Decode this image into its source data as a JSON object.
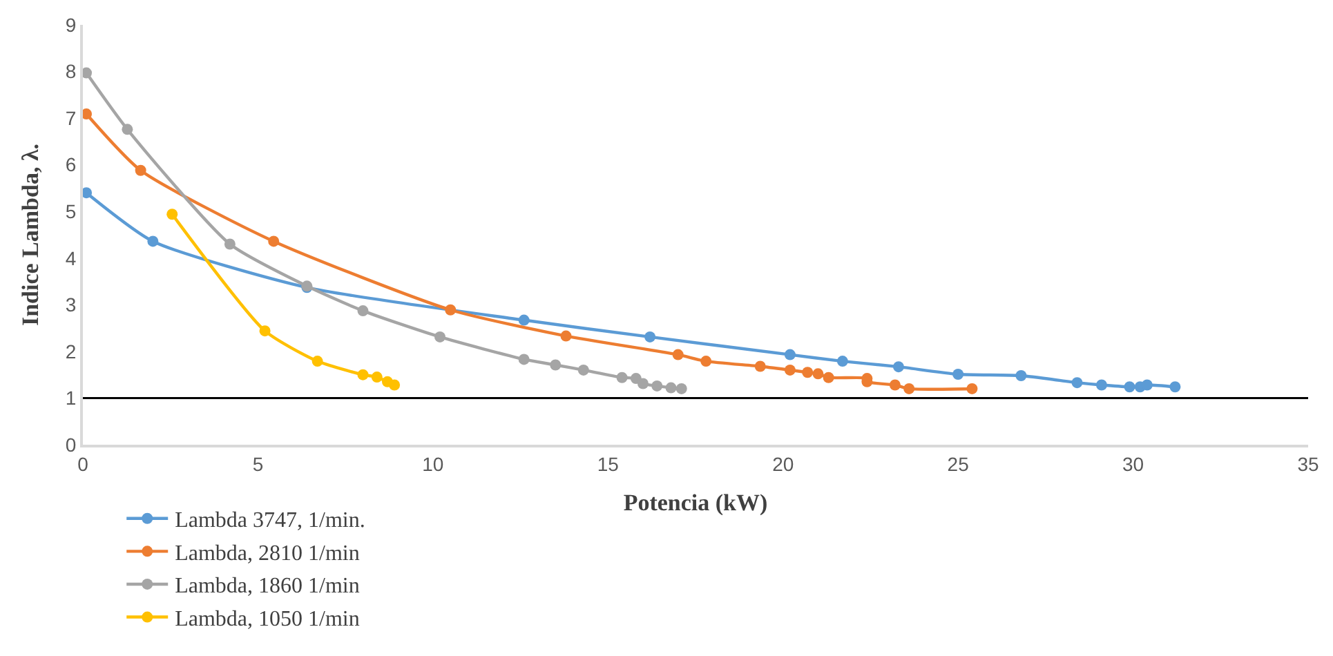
{
  "chart_data": {
    "type": "line",
    "xlabel": "Potencia (kW)",
    "ylabel": "Indice Lambda, λ.",
    "xlim": [
      0,
      35
    ],
    "xticks": [
      0,
      5,
      10,
      15,
      20,
      25,
      30,
      35
    ],
    "ylim": [
      0,
      9
    ],
    "yticks": [
      0,
      1,
      2,
      3,
      4,
      5,
      6,
      7,
      8,
      9
    ],
    "legend": "bottom",
    "marker": "circle",
    "line_style": "solid",
    "ref_lines": [
      {
        "axis": "y",
        "value": 1,
        "color": "#000000"
      }
    ],
    "series": [
      {
        "name": "Lambda 3747, 1/min.",
        "color": "#5b9bd5",
        "x": [
          0.1,
          2.0,
          6.4,
          12.6,
          16.2,
          20.2,
          21.7,
          23.3,
          25.0,
          26.8,
          28.4,
          29.1,
          29.9,
          30.2,
          30.4,
          31.2
        ],
        "values": [
          5.4,
          4.36,
          3.37,
          2.67,
          2.31,
          1.93,
          1.79,
          1.67,
          1.51,
          1.48,
          1.33,
          1.28,
          1.24,
          1.24,
          1.28,
          1.24
        ]
      },
      {
        "name": "Lambda, 2810 1/min",
        "color": "#ed7d31",
        "x": [
          0.1,
          1.65,
          5.45,
          10.5,
          13.8,
          17.0,
          17.8,
          19.35,
          20.2,
          20.7,
          21.0,
          21.3,
          22.4,
          22.4,
          23.2,
          23.6,
          25.4
        ],
        "values": [
          7.09,
          5.88,
          4.36,
          2.89,
          2.33,
          1.93,
          1.79,
          1.68,
          1.6,
          1.55,
          1.52,
          1.44,
          1.42,
          1.35,
          1.28,
          1.2,
          1.2
        ]
      },
      {
        "name": "Lambda, 1860 1/min",
        "color": "#a5a5a5",
        "x": [
          0.1,
          1.27,
          4.2,
          6.4,
          8.0,
          10.2,
          12.6,
          13.5,
          14.3,
          15.4,
          15.8,
          16.0,
          16.4,
          16.8,
          17.1
        ],
        "values": [
          7.97,
          6.76,
          4.3,
          3.4,
          2.87,
          2.31,
          1.83,
          1.71,
          1.6,
          1.44,
          1.42,
          1.31,
          1.26,
          1.22,
          1.2
        ]
      },
      {
        "name": "Lambda, 1050 1/min",
        "color": "#ffc000",
        "x": [
          2.55,
          5.2,
          6.7,
          8.0,
          8.4,
          8.7,
          8.9
        ],
        "values": [
          4.94,
          2.44,
          1.79,
          1.5,
          1.45,
          1.35,
          1.28
        ]
      }
    ]
  }
}
